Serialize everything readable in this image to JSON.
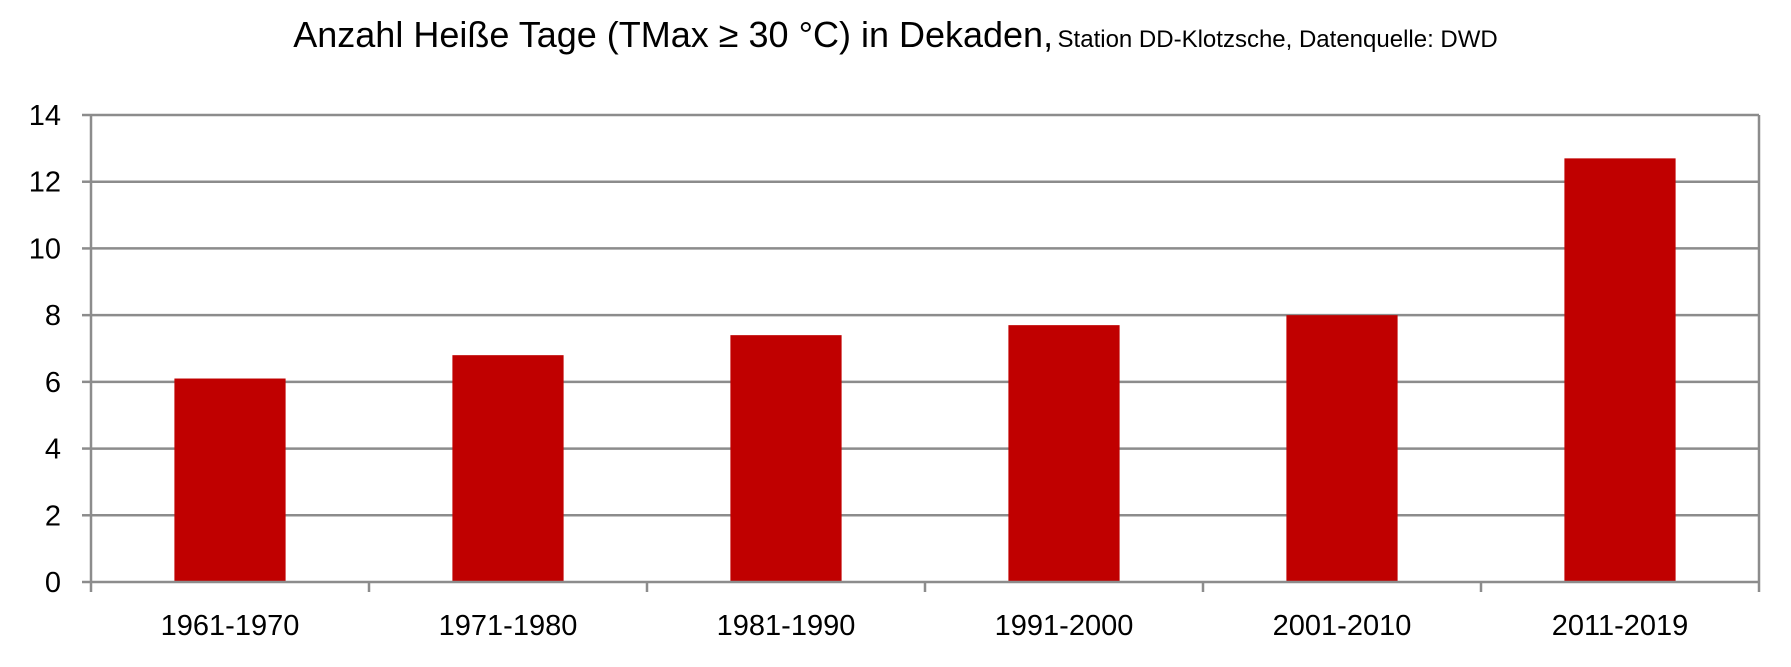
{
  "chart_data": {
    "type": "bar",
    "title": "Anzahl Heiße Tage (TMax ≥ 30 °C) in Dekaden,",
    "subtitle": "Station DD-Klotzsche, Datenquelle: DWD",
    "xlabel": "",
    "ylabel": "",
    "categories": [
      "1961-1970",
      "1971-1980",
      "1981-1990",
      "1991-2000",
      "2001-2010",
      "2011-2019"
    ],
    "values": [
      6.1,
      6.8,
      7.4,
      7.7,
      8.0,
      12.7
    ],
    "ylim": [
      0,
      14
    ],
    "yticks": [
      "0",
      "2",
      "4",
      "6",
      "8",
      "10",
      "12",
      "14"
    ],
    "grid": true,
    "legend": "none",
    "bar_color": "#c00000",
    "grid_color": "#8c8c8c"
  }
}
